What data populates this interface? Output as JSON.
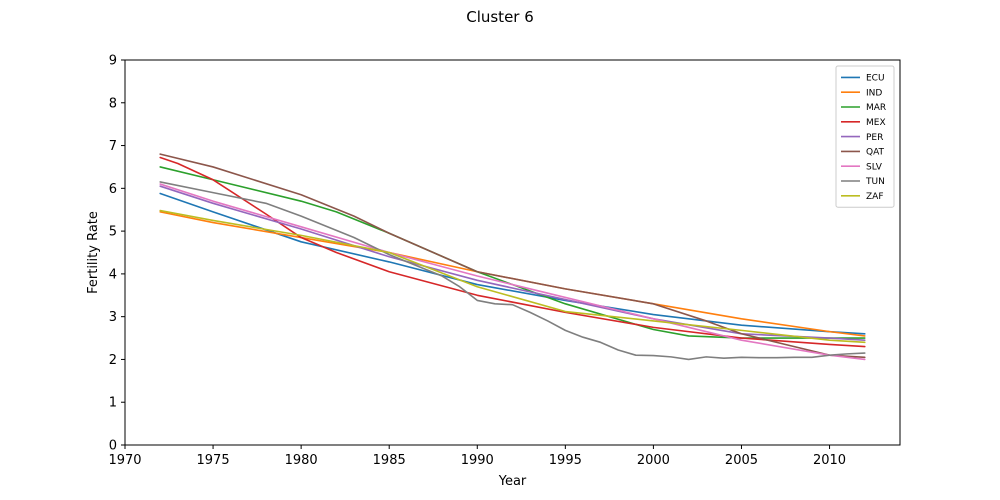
{
  "chart_data": {
    "type": "line",
    "title": "Cluster 6",
    "xlabel": "Year",
    "ylabel": "Fertility Rate",
    "xlim": [
      1970,
      2014
    ],
    "ylim": [
      0,
      9
    ],
    "xticks": [
      1970,
      1975,
      1980,
      1985,
      1990,
      1995,
      2000,
      2005,
      2010
    ],
    "yticks": [
      0,
      1,
      2,
      3,
      4,
      5,
      6,
      7,
      8,
      9
    ],
    "grid": false,
    "legend_position": "top-right",
    "series": [
      {
        "name": "ECU",
        "color": "#1f77b4",
        "points": [
          [
            1972,
            5.88
          ],
          [
            1975,
            5.45
          ],
          [
            1980,
            4.75
          ],
          [
            1985,
            4.28
          ],
          [
            1990,
            3.75
          ],
          [
            1995,
            3.38
          ],
          [
            2000,
            3.05
          ],
          [
            2005,
            2.8
          ],
          [
            2010,
            2.65
          ],
          [
            2012,
            2.6
          ]
        ]
      },
      {
        "name": "IND",
        "color": "#ff7f0e",
        "points": [
          [
            1972,
            5.45
          ],
          [
            1975,
            5.2
          ],
          [
            1980,
            4.85
          ],
          [
            1985,
            4.5
          ],
          [
            1990,
            4.05
          ],
          [
            1995,
            3.65
          ],
          [
            2000,
            3.3
          ],
          [
            2005,
            2.95
          ],
          [
            2010,
            2.65
          ],
          [
            2012,
            2.55
          ]
        ]
      },
      {
        "name": "MAR",
        "color": "#2ca02c",
        "points": [
          [
            1972,
            6.5
          ],
          [
            1975,
            6.2
          ],
          [
            1980,
            5.7
          ],
          [
            1982,
            5.45
          ],
          [
            1985,
            4.95
          ],
          [
            1990,
            4.05
          ],
          [
            1995,
            3.3
          ],
          [
            2000,
            2.7
          ],
          [
            2002,
            2.55
          ],
          [
            2005,
            2.5
          ],
          [
            2008,
            2.5
          ],
          [
            2012,
            2.5
          ]
        ]
      },
      {
        "name": "MEX",
        "color": "#d62728",
        "points": [
          [
            1972,
            6.72
          ],
          [
            1973,
            6.58
          ],
          [
            1975,
            6.2
          ],
          [
            1978,
            5.4
          ],
          [
            1980,
            4.85
          ],
          [
            1982,
            4.5
          ],
          [
            1985,
            4.05
          ],
          [
            1990,
            3.5
          ],
          [
            1995,
            3.1
          ],
          [
            2000,
            2.75
          ],
          [
            2005,
            2.5
          ],
          [
            2010,
            2.35
          ],
          [
            2012,
            2.3
          ]
        ]
      },
      {
        "name": "PER",
        "color": "#9467bd",
        "points": [
          [
            1972,
            6.05
          ],
          [
            1975,
            5.65
          ],
          [
            1980,
            5.05
          ],
          [
            1985,
            4.4
          ],
          [
            1990,
            3.85
          ],
          [
            1995,
            3.4
          ],
          [
            2000,
            2.95
          ],
          [
            2005,
            2.6
          ],
          [
            2010,
            2.5
          ],
          [
            2012,
            2.45
          ]
        ]
      },
      {
        "name": "QAT",
        "color": "#8c564b",
        "points": [
          [
            1972,
            6.8
          ],
          [
            1975,
            6.5
          ],
          [
            1980,
            5.85
          ],
          [
            1983,
            5.35
          ],
          [
            1985,
            4.95
          ],
          [
            1990,
            4.05
          ],
          [
            1995,
            3.65
          ],
          [
            2000,
            3.3
          ],
          [
            2003,
            2.9
          ],
          [
            2005,
            2.6
          ],
          [
            2008,
            2.3
          ],
          [
            2010,
            2.1
          ],
          [
            2012,
            2.05
          ]
        ]
      },
      {
        "name": "SLV",
        "color": "#e377c2",
        "points": [
          [
            1972,
            6.1
          ],
          [
            1975,
            5.7
          ],
          [
            1980,
            5.1
          ],
          [
            1985,
            4.5
          ],
          [
            1990,
            3.95
          ],
          [
            1995,
            3.45
          ],
          [
            2000,
            2.95
          ],
          [
            2005,
            2.45
          ],
          [
            2010,
            2.1
          ],
          [
            2012,
            2.0
          ]
        ]
      },
      {
        "name": "TUN",
        "color": "#7f7f7f",
        "points": [
          [
            1972,
            6.15
          ],
          [
            1975,
            5.9
          ],
          [
            1978,
            5.65
          ],
          [
            1980,
            5.35
          ],
          [
            1983,
            4.85
          ],
          [
            1985,
            4.45
          ],
          [
            1988,
            3.95
          ],
          [
            1989,
            3.7
          ],
          [
            1990,
            3.38
          ],
          [
            1991,
            3.3
          ],
          [
            1992,
            3.28
          ],
          [
            1993,
            3.1
          ],
          [
            1994,
            2.9
          ],
          [
            1995,
            2.68
          ],
          [
            1996,
            2.52
          ],
          [
            1997,
            2.4
          ],
          [
            1998,
            2.22
          ],
          [
            1999,
            2.1
          ],
          [
            2000,
            2.09
          ],
          [
            2001,
            2.06
          ],
          [
            2002,
            2.0
          ],
          [
            2003,
            2.06
          ],
          [
            2004,
            2.03
          ],
          [
            2005,
            2.05
          ],
          [
            2006,
            2.04
          ],
          [
            2007,
            2.04
          ],
          [
            2008,
            2.05
          ],
          [
            2009,
            2.05
          ],
          [
            2010,
            2.1
          ],
          [
            2011,
            2.13
          ],
          [
            2012,
            2.15
          ]
        ]
      },
      {
        "name": "ZAF",
        "color": "#bcbd22",
        "points": [
          [
            1972,
            5.48
          ],
          [
            1975,
            5.25
          ],
          [
            1980,
            4.9
          ],
          [
            1985,
            4.5
          ],
          [
            1990,
            3.7
          ],
          [
            1995,
            3.12
          ],
          [
            2000,
            2.9
          ],
          [
            2005,
            2.68
          ],
          [
            2010,
            2.45
          ],
          [
            2012,
            2.4
          ]
        ]
      }
    ]
  }
}
